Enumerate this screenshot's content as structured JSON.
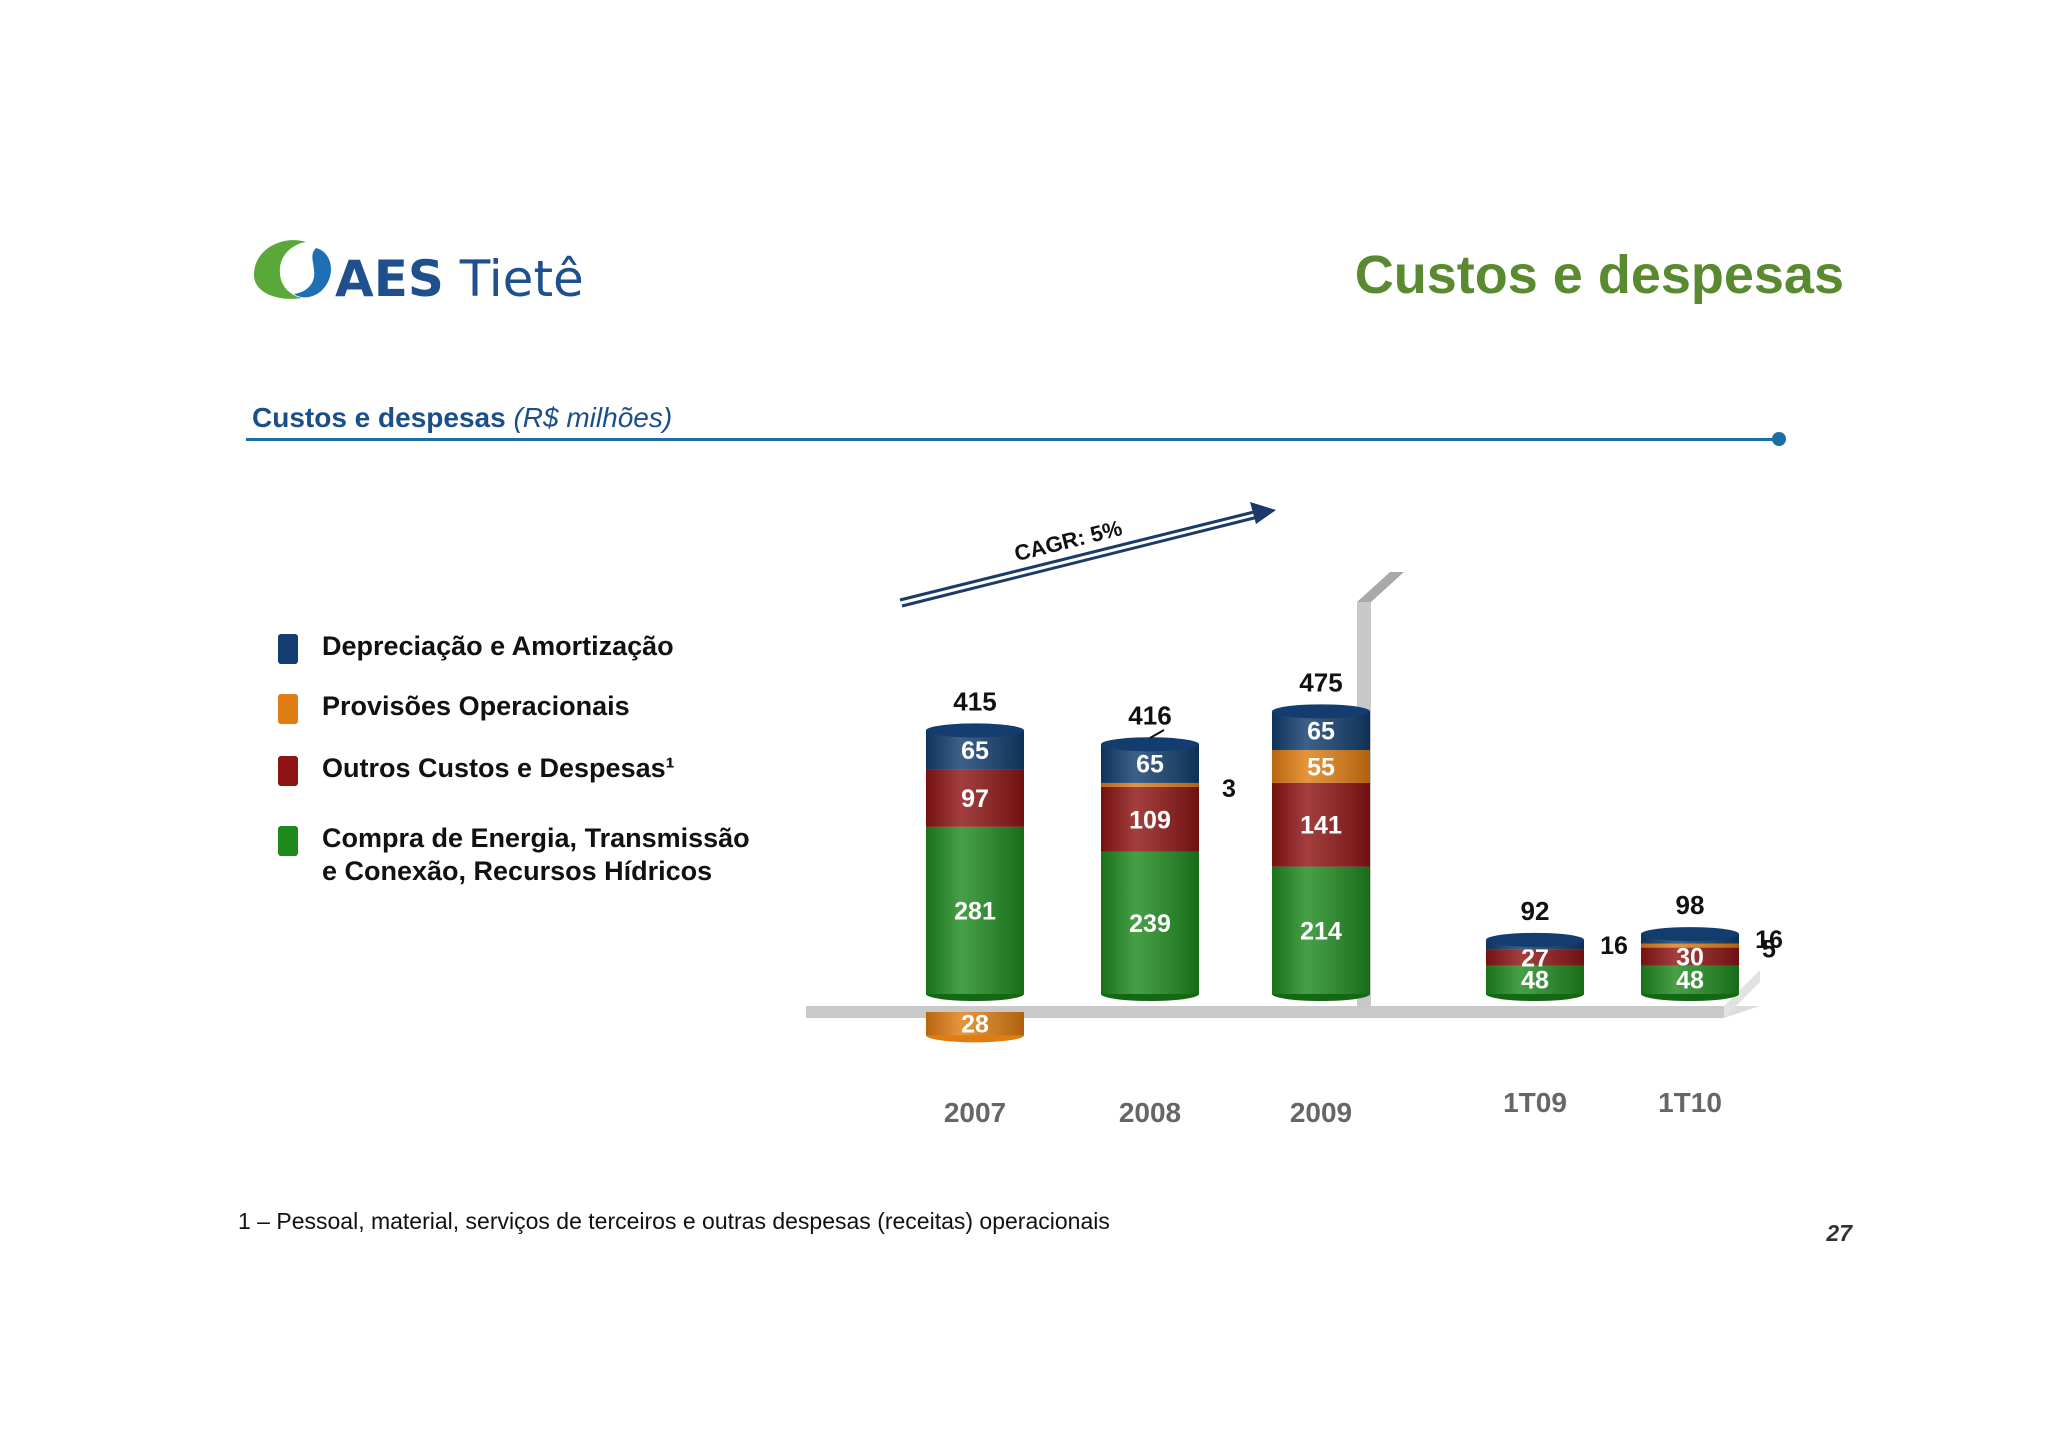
{
  "header": {
    "logo_text_bold": "AES",
    "logo_text_light": "Tietê",
    "page_title": "Custos e despesas"
  },
  "section": {
    "title": "Custos e despesas",
    "unit": "(R$ milhões)"
  },
  "legend": [
    {
      "label": "Depreciação e Amortização",
      "color": "#123d6e"
    },
    {
      "label": "Provisões Operacionais",
      "color": "#e07d12"
    },
    {
      "label": "Outros Custos e Despesas¹",
      "color": "#8e1414"
    },
    {
      "label": "Compra de Energia, Transmissão",
      "label2": "e Conexão, Recursos Hídricos",
      "color": "#1e8a1e"
    }
  ],
  "footnote": "1 – Pessoal, material, serviços de terceiros e outras despesas (receitas) operacionais",
  "page_number": "27",
  "chart_data": {
    "type": "bar",
    "stacked": true,
    "categories": [
      "2007",
      "2008",
      "2009",
      "1T09",
      "1T10"
    ],
    "series": [
      {
        "name": "Compra de Energia, Transmissão e Conexão, Recursos Hídricos",
        "color": "#1e8a1e",
        "values": [
          281,
          239,
          214,
          48,
          48
        ]
      },
      {
        "name": "Outros Custos e Despesas¹",
        "color": "#8e1414",
        "values": [
          97,
          109,
          141,
          27,
          30
        ]
      },
      {
        "name": "Provisões Operacionais",
        "color": "#e07d12",
        "values": [
          -28,
          3,
          55,
          null,
          5
        ]
      },
      {
        "name": "Depreciação e Amortização",
        "color": "#123d6e",
        "values": [
          65,
          65,
          65,
          16,
          16
        ]
      }
    ],
    "totals": [
      "415",
      "416",
      "475",
      "92",
      "98"
    ],
    "segment_labels": [
      [
        "281",
        "97",
        "28",
        "65"
      ],
      [
        "239",
        "109",
        "3",
        "65"
      ],
      [
        "214",
        "141",
        "55",
        "65"
      ],
      [
        "48",
        "27",
        "",
        "16"
      ],
      [
        "48",
        "30",
        "5",
        "16"
      ]
    ],
    "annotation": "CAGR: 5%"
  }
}
